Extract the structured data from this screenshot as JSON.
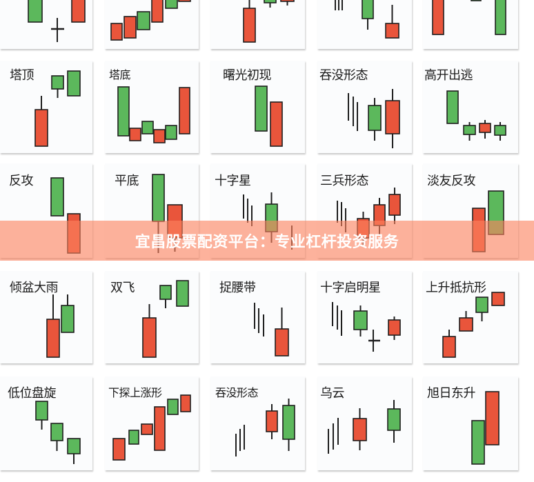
{
  "colors": {
    "bullish": "#5cb85c",
    "bearish": "#e9553b",
    "outline": "#1e1e1e",
    "banner": "#fc825f"
  },
  "rows": [
    {
      "tiles": [
        {
          "label": ""
        },
        {
          "label": ""
        },
        {
          "label": ""
        },
        {
          "label": ""
        },
        {
          "label": ""
        }
      ]
    },
    {
      "tiles": [
        {
          "label": "塔顶"
        },
        {
          "label": "塔底"
        },
        {
          "label": "曙光初现"
        },
        {
          "label": "吞没形态"
        },
        {
          "label": "高开出逃"
        }
      ]
    },
    {
      "tiles": [
        {
          "label": "反攻"
        },
        {
          "label": "平底"
        },
        {
          "label": "十字星"
        },
        {
          "label": "三兵形态"
        },
        {
          "label": "淡友反攻"
        }
      ]
    },
    {
      "tiles": [
        {
          "label": "倾盆大雨"
        },
        {
          "label": "双飞"
        },
        {
          "label": "捉腰带"
        },
        {
          "label": "十字启明星"
        },
        {
          "label": "上升抵抗形"
        }
      ]
    },
    {
      "tiles": [
        {
          "label": "低位盘旋"
        },
        {
          "label": "下探上涨形"
        },
        {
          "label": "吞没形态"
        },
        {
          "label": "乌云"
        },
        {
          "label": "旭日东升"
        }
      ]
    }
  ],
  "banner": {
    "text": "宜昌股票配资平台：专业杠杆投资服务"
  }
}
